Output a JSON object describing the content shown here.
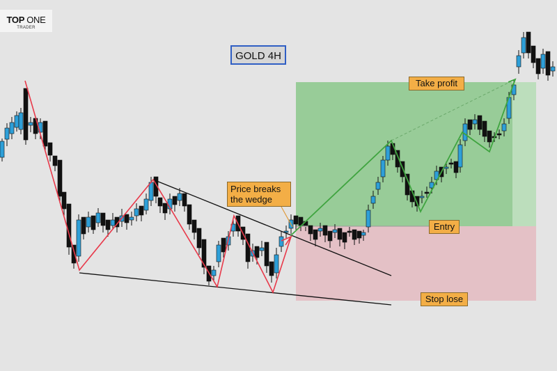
{
  "logo": {
    "brand_bold": "TOP",
    "brand_thin": "ONE",
    "sub": "TRADER"
  },
  "colors": {
    "background": "#e4e4e4",
    "bull": "#2e9fd8",
    "bear": "#111111",
    "wedge_zigzag": "#e8394a",
    "projection": "#3fa43f",
    "target_zone": "#8fc98f",
    "stop_zone": "#e3bcc2",
    "label_bg": "#f3ae46",
    "title_border": "#2f5ec4"
  },
  "chart_data": {
    "type": "candlestick",
    "title": "GOLD 4H",
    "xlabel": "",
    "ylabel": "",
    "grid": false,
    "annotations": {
      "breakout": "Price breaks\nthe wedge",
      "take_profit": "Take profit",
      "entry": "Entry",
      "stop_loss": "Stop lose"
    },
    "candles": [
      [
        3,
        232,
        226,
        203,
        199
      ],
      [
        10,
        210,
        200,
        184,
        177
      ],
      [
        17,
        200,
        192,
        176,
        168
      ],
      [
        24,
        189,
        183,
        166,
        160
      ],
      [
        30,
        193,
        186,
        162,
        155
      ],
      [
        37,
        140,
        127,
        201,
        208
      ],
      [
        44,
        190,
        180,
        176,
        168
      ],
      [
        51,
        178,
        170,
        192,
        200
      ],
      [
        58,
        200,
        190,
        176,
        170
      ],
      [
        65,
        182,
        174,
        210,
        218
      ],
      [
        72,
        214,
        205,
        223,
        232
      ],
      [
        79,
        232,
        224,
        238,
        246
      ],
      [
        86,
        240,
        230,
        282,
        292
      ],
      [
        92,
        284,
        276,
        300,
        310
      ],
      [
        99,
        302,
        293,
        355,
        366
      ],
      [
        106,
        360,
        352,
        378,
        386
      ],
      [
        113,
        376,
        368,
        316,
        308
      ],
      [
        120,
        320,
        312,
        336,
        344
      ],
      [
        127,
        334,
        326,
        312,
        304
      ],
      [
        134,
        318,
        310,
        330,
        336
      ],
      [
        141,
        326,
        320,
        306,
        299
      ],
      [
        148,
        314,
        306,
        324,
        334
      ],
      [
        155,
        322,
        316,
        330,
        340
      ],
      [
        162,
        330,
        324,
        316,
        306
      ],
      [
        168,
        320,
        312,
        326,
        334
      ],
      [
        175,
        326,
        318,
        310,
        300
      ],
      [
        182,
        316,
        308,
        320,
        330
      ],
      [
        189,
        324,
        316,
        312,
        304
      ],
      [
        196,
        318,
        310,
        300,
        292
      ],
      [
        203,
        304,
        296,
        309,
        318
      ],
      [
        210,
        308,
        302,
        286,
        278
      ],
      [
        217,
        296,
        288,
        262,
        254
      ],
      [
        224,
        262,
        254,
        282,
        292
      ],
      [
        230,
        292,
        284,
        296,
        306
      ],
      [
        237,
        300,
        292,
        306,
        316
      ],
      [
        244,
        308,
        300,
        286,
        278
      ],
      [
        251,
        288,
        282,
        294,
        304
      ],
      [
        258,
        296,
        288,
        278,
        270
      ],
      [
        265,
        284,
        278,
        296,
        304
      ],
      [
        272,
        300,
        294,
        322,
        330
      ],
      [
        279,
        324,
        316,
        334,
        344
      ],
      [
        286,
        336,
        328,
        356,
        366
      ],
      [
        293,
        352,
        344,
        384,
        394
      ],
      [
        300,
        390,
        382,
        404,
        410
      ],
      [
        307,
        404,
        396,
        388,
        382
      ],
      [
        314,
        384,
        376,
        352,
        346
      ],
      [
        321,
        350,
        342,
        362,
        370
      ],
      [
        328,
        360,
        352,
        340,
        332
      ],
      [
        335,
        340,
        332,
        322,
        314
      ],
      [
        342,
        318,
        310,
        332,
        340
      ],
      [
        349,
        332,
        326,
        344,
        352
      ],
      [
        356,
        342,
        336,
        376,
        386
      ],
      [
        363,
        376,
        368,
        360,
        350
      ],
      [
        369,
        362,
        354,
        370,
        380
      ],
      [
        376,
        368,
        360,
        356,
        346
      ],
      [
        383,
        356,
        348,
        382,
        392
      ],
      [
        390,
        384,
        376,
        396,
        406
      ],
      [
        397,
        400,
        392,
        366,
        356
      ],
      [
        404,
        362,
        354,
        340,
        332
      ],
      [
        411,
        342,
        334,
        332,
        324
      ],
      [
        418,
        336,
        328,
        316,
        308
      ],
      [
        425,
        318,
        310,
        322,
        330
      ],
      [
        432,
        320,
        312,
        324,
        332
      ],
      [
        439,
        326,
        318,
        324,
        332
      ],
      [
        446,
        332,
        324,
        336,
        346
      ],
      [
        453,
        338,
        330,
        344,
        354
      ],
      [
        460,
        340,
        332,
        328,
        320
      ],
      [
        467,
        332,
        324,
        338,
        348
      ],
      [
        474,
        340,
        332,
        346,
        356
      ],
      [
        481,
        342,
        334,
        330,
        322
      ],
      [
        488,
        336,
        328,
        344,
        354
      ],
      [
        495,
        342,
        334,
        348,
        358
      ],
      [
        502,
        340,
        332,
        334,
        326
      ],
      [
        509,
        338,
        330,
        344,
        352
      ],
      [
        516,
        340,
        332,
        342,
        350
      ],
      [
        522,
        346,
        338,
        334,
        330
      ],
      [
        529,
        334,
        326,
        302,
        294
      ],
      [
        536,
        300,
        292,
        282,
        274
      ],
      [
        543,
        280,
        272,
        262,
        254
      ],
      [
        550,
        262,
        254,
        230,
        224
      ],
      [
        557,
        238,
        230,
        210,
        202
      ],
      [
        564,
        214,
        206,
        222,
        230
      ],
      [
        571,
        224,
        216,
        240,
        248
      ],
      [
        578,
        240,
        232,
        254,
        262
      ],
      [
        585,
        258,
        250,
        280,
        288
      ],
      [
        592,
        282,
        274,
        290,
        298
      ],
      [
        599,
        290,
        282,
        296,
        304
      ],
      [
        606,
        292,
        284,
        282,
        274
      ],
      [
        613,
        284,
        276,
        276,
        268
      ],
      [
        620,
        278,
        270,
        262,
        254
      ],
      [
        627,
        266,
        258,
        246,
        238
      ],
      [
        634,
        248,
        240,
        254,
        262
      ],
      [
        641,
        250,
        242,
        240,
        232
      ],
      [
        648,
        242,
        234,
        236,
        228
      ],
      [
        655,
        240,
        232,
        248,
        256
      ],
      [
        661,
        248,
        240,
        208,
        200
      ],
      [
        668,
        210,
        202,
        178,
        170
      ],
      [
        675,
        180,
        172,
        186,
        194
      ],
      [
        682,
        186,
        178,
        172,
        164
      ],
      [
        689,
        174,
        166,
        186,
        194
      ],
      [
        696,
        182,
        174,
        196,
        204
      ],
      [
        703,
        196,
        188,
        204,
        212
      ],
      [
        710,
        204,
        196,
        198,
        190
      ],
      [
        717,
        200,
        192,
        194,
        186
      ],
      [
        724,
        196,
        188,
        178,
        170
      ],
      [
        731,
        178,
        170,
        140,
        132
      ],
      [
        738,
        144,
        136,
        122,
        114
      ],
      [
        745,
        106,
        96,
        80,
        72
      ],
      [
        752,
        84,
        76,
        54,
        46
      ],
      [
        759,
        54,
        46,
        76,
        84
      ],
      [
        766,
        74,
        66,
        90,
        98
      ],
      [
        773,
        92,
        84,
        106,
        114
      ],
      [
        780,
        106,
        98,
        78,
        70
      ],
      [
        787,
        82,
        74,
        108,
        116
      ],
      [
        794,
        110,
        102,
        96,
        88
      ]
    ],
    "wedge_upper": [
      [
        220,
        258
      ],
      [
        562,
        396
      ]
    ],
    "wedge_lower": [
      [
        114,
        392
      ],
      [
        562,
        438
      ]
    ],
    "zigzag": [
      [
        36,
        116
      ],
      [
        114,
        388
      ],
      [
        220,
        258
      ],
      [
        312,
        412
      ],
      [
        336,
        310
      ],
      [
        392,
        420
      ],
      [
        418,
        340
      ]
    ],
    "projection": [
      [
        418,
        338
      ],
      [
        562,
        202
      ],
      [
        604,
        304
      ],
      [
        664,
        190
      ],
      [
        703,
        218
      ],
      [
        740,
        114
      ]
    ],
    "projection_dashed": [
      [
        562,
        202
      ],
      [
        740,
        114
      ]
    ],
    "target_zone": {
      "x1": 425,
      "x2": 770,
      "y_top": 118,
      "y_entry": 325
    },
    "stop_zone": {
      "x1": 425,
      "x2": 770,
      "y_entry": 325,
      "y_bottom": 432
    }
  }
}
